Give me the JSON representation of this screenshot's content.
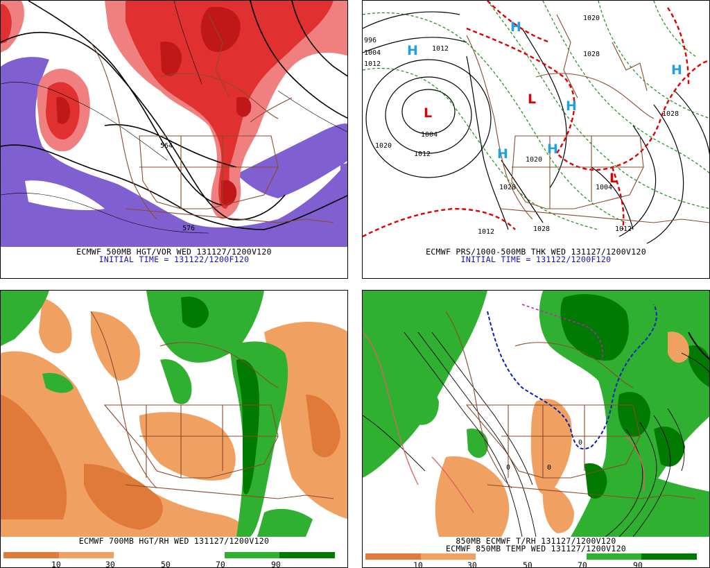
{
  "panels": {
    "p1": {
      "line1": "ECMWF 500MB HGT/VOR WED 131127/1200V120",
      "line2": "INITIAL TIME = 131122/1200F120",
      "contour_labels": [
        "564",
        "576"
      ]
    },
    "p2": {
      "line1": "ECMWF PRS/1000-500MB THK WED 131127/1200V120",
      "line2": "INITIAL TIME = 131122/1200F120",
      "isobar_labels": [
        "996",
        "1004",
        "1012",
        "1012",
        "1004",
        "1020",
        "1012",
        "1020",
        "1028",
        "1028",
        "1020",
        "1028",
        "1012",
        "1012",
        "1028",
        "1004"
      ],
      "highs": [
        "H",
        "H",
        "H",
        "H",
        "H",
        "H"
      ],
      "lows": [
        "L",
        "L",
        "L"
      ]
    },
    "p3": {
      "line1": "ECMWF 700MB HGT/RH WED 131127/1200V120",
      "colorbar_ticks": [
        "10",
        "30",
        "50",
        "70",
        "90"
      ]
    },
    "p4": {
      "line1": "850MB ECMWF T/RH 131127/1200V120",
      "line2": "ECMWF 850MB TEMP WED 131127/1200V120",
      "colorbar_ticks": [
        "10",
        "30",
        "50",
        "70",
        "90"
      ],
      "temp_labels": [
        "0",
        "0",
        "0"
      ]
    }
  },
  "colors": {
    "vorticity_red": "#e03030",
    "vorticity_dark": "#c01818",
    "vorticity_light": "#f08080",
    "vorticity_neg": "#8060d0",
    "map_lines": "#8b4a2b",
    "rh_dry": "#f0a060",
    "rh_very_dry": "#e07a3a",
    "rh_moist": "#30b030",
    "rh_very_moist": "#007a00",
    "thickness_dashed_green": "#109010",
    "thickness_dashed_red": "#e00000",
    "high_cyan": "#20a0e0",
    "low_red": "#e00000",
    "zero_line_blue": "#0020c0",
    "freezing_magenta": "#c020c0"
  }
}
